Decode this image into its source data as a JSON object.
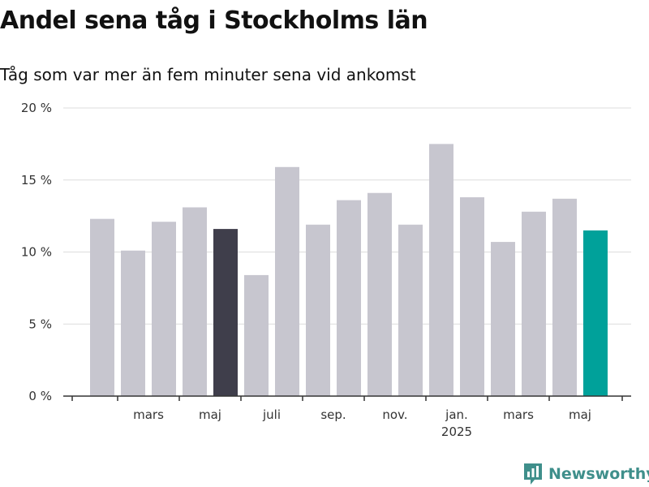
{
  "chart_data": {
    "type": "bar",
    "title": "Andel sena tåg i Stockholms län",
    "subtitle": "Tåg som var mer än fem minuter sena vid ankomst",
    "values": [
      12.3,
      10.1,
      12.1,
      13.1,
      11.6,
      8.4,
      15.9,
      11.9,
      13.6,
      14.1,
      11.9,
      17.5,
      13.8,
      10.7,
      12.8,
      13.7,
      11.5
    ],
    "bar_colors": [
      "#c7c6cf",
      "#c7c6cf",
      "#c7c6cf",
      "#c7c6cf",
      "#3f3e4b",
      "#c7c6cf",
      "#c7c6cf",
      "#c7c6cf",
      "#c7c6cf",
      "#c7c6cf",
      "#c7c6cf",
      "#c7c6cf",
      "#c7c6cf",
      "#c7c6cf",
      "#c7c6cf",
      "#c7c6cf",
      "#00a19a"
    ],
    "ylim": [
      0,
      20
    ],
    "y_ticks": [
      {
        "value": 0,
        "label": "0 %"
      },
      {
        "value": 5,
        "label": "5 %"
      },
      {
        "value": 10,
        "label": "10 %"
      },
      {
        "value": 15,
        "label": "15 %"
      },
      {
        "value": 20,
        "label": "20 %"
      }
    ],
    "x_labels": [
      {
        "after_bar": 1,
        "label": "mars"
      },
      {
        "after_bar": 3,
        "label": "maj"
      },
      {
        "after_bar": 5,
        "label": "juli"
      },
      {
        "after_bar": 7,
        "label": "sep."
      },
      {
        "after_bar": 9,
        "label": "nov."
      },
      {
        "after_bar": 11,
        "label": "jan.",
        "sublabel": "2025"
      },
      {
        "after_bar": 13,
        "label": "mars"
      },
      {
        "after_bar": 15,
        "label": "maj"
      }
    ],
    "grid": true,
    "colors": {
      "default": "#c7c6cf",
      "highlight": "#3f3e4b",
      "latest": "#00a19a",
      "grid": "#dddddd",
      "axis": "#333333"
    }
  },
  "branding": {
    "name": "Newsworthy",
    "color": "#3f8f8b"
  }
}
